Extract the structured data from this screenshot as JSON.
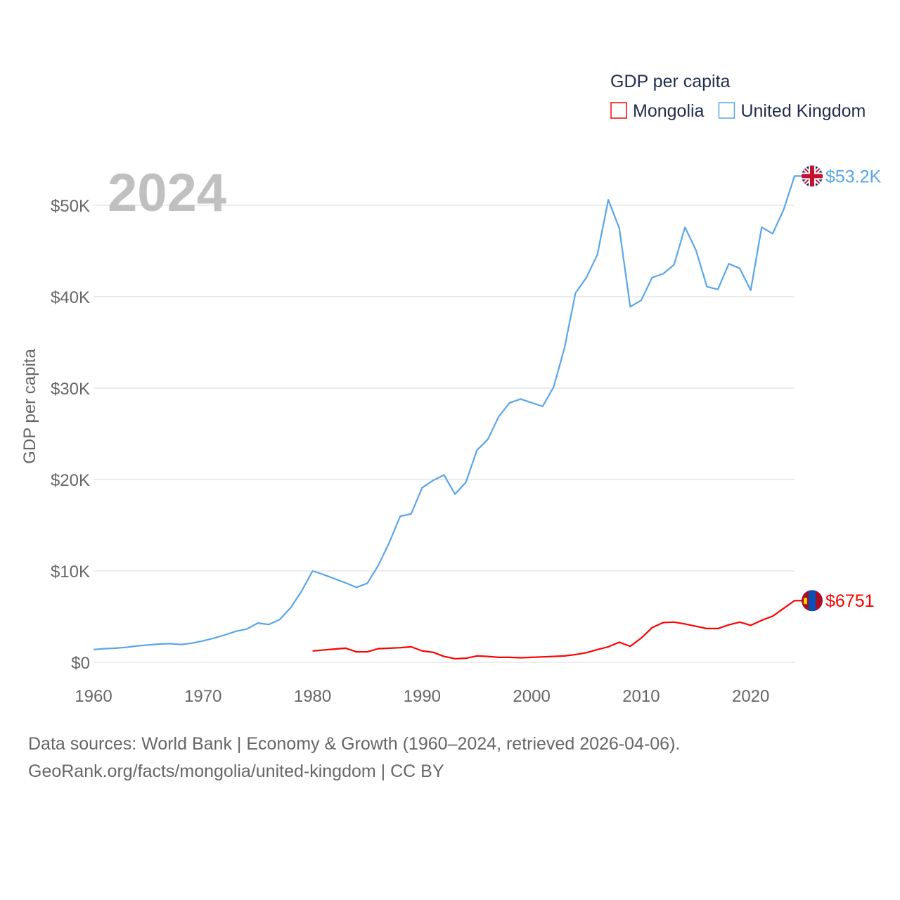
{
  "chart_data": {
    "type": "line",
    "title": "GDP per capita",
    "year_label": "2024",
    "ylabel": "GDP per capita",
    "xlabel": "",
    "xlim": [
      1960,
      2024
    ],
    "ylim": [
      0,
      53.2
    ],
    "y_unit": "thousand USD",
    "grid": true,
    "legend_placement": "top-right",
    "x_ticks": [
      "1960",
      "1970",
      "1980",
      "1990",
      "2000",
      "2010",
      "2020"
    ],
    "x_tick_values": [
      1960,
      1970,
      1980,
      1990,
      2000,
      2010,
      2020
    ],
    "y_ticks": [
      "$0",
      "$10K",
      "$20K",
      "$30K",
      "$40K",
      "$50K"
    ],
    "y_tick_values": [
      0,
      10,
      20,
      30,
      40,
      50
    ],
    "series": [
      {
        "name": "Mongolia",
        "color": "#ff0000",
        "end_label": "$6751",
        "flag": "mongolia-flag",
        "x_start": 1980,
        "values": [
          1.25,
          1.35,
          1.45,
          1.55,
          1.15,
          1.15,
          1.5,
          1.55,
          1.6,
          1.7,
          1.25,
          1.1,
          0.65,
          0.4,
          0.45,
          0.7,
          0.65,
          0.55,
          0.55,
          0.5,
          0.55,
          0.6,
          0.65,
          0.7,
          0.85,
          1.05,
          1.4,
          1.7,
          2.2,
          1.75,
          2.65,
          3.8,
          4.35,
          4.4,
          4.2,
          3.95,
          3.7,
          3.7,
          4.1,
          4.4,
          4.05,
          4.6,
          5.05,
          5.9,
          6.751
        ]
      },
      {
        "name": "United Kingdom",
        "color": "#5aa5e8",
        "end_label": "$53.2K",
        "flag": "uk-flag",
        "x_start": 1960,
        "values": [
          1.4,
          1.5,
          1.55,
          1.65,
          1.8,
          1.9,
          2.0,
          2.05,
          1.95,
          2.1,
          2.35,
          2.65,
          3.0,
          3.4,
          3.65,
          4.3,
          4.14,
          4.68,
          5.98,
          7.8,
          10.0,
          9.6,
          9.15,
          8.7,
          8.2,
          8.65,
          10.6,
          13.1,
          15.98,
          16.24,
          19.1,
          19.9,
          20.5,
          18.4,
          19.7,
          23.2,
          24.4,
          26.9,
          28.4,
          28.8,
          28.4,
          28.0,
          30.1,
          34.4,
          40.4,
          42.1,
          44.6,
          50.6,
          47.5,
          38.9,
          39.6,
          42.1,
          42.5,
          43.5,
          47.6,
          45.1,
          41.1,
          40.8,
          43.6,
          43.1,
          40.7,
          47.6,
          46.9,
          49.5,
          53.2
        ]
      }
    ]
  },
  "footer": {
    "line1": "Data sources: World Bank | Economy & Growth (1960–2024, retrieved 2026-04-06).",
    "line2": "GeoRank.org/facts/mongolia/united-kingdom | CC BY"
  }
}
